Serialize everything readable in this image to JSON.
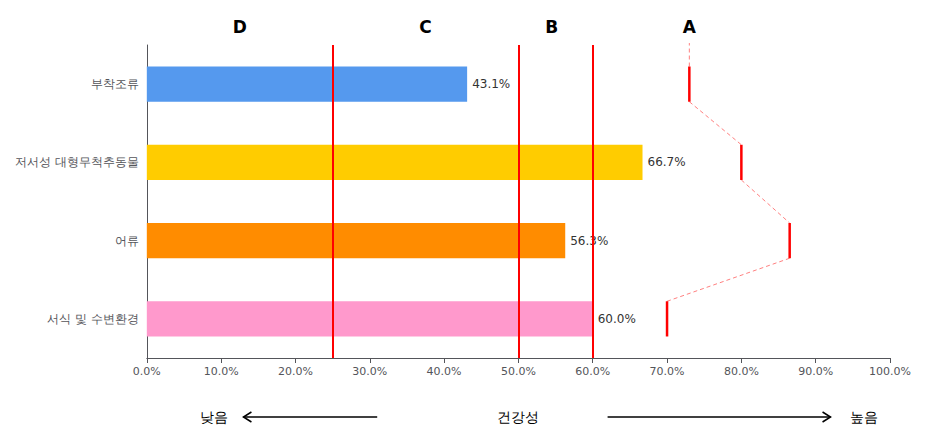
{
  "chart_data": {
    "type": "bar",
    "orientation": "horizontal",
    "categories": [
      "부착조류",
      "저서성 대형무척추동물",
      "어류",
      "서식 및 수변환경"
    ],
    "values": [
      0.431,
      0.667,
      0.563,
      0.6
    ],
    "value_labels": [
      "43.1%",
      "66.7%",
      "56.3%",
      "60.0%"
    ],
    "data_labels": true,
    "colors": [
      "#5599ee",
      "#ffcc00",
      "#ff8c00",
      "#ff99cc"
    ],
    "xlim": [
      0.0,
      1.0
    ],
    "xticks": [
      {
        "value": 0.0,
        "label": "0.0%"
      },
      {
        "value": 0.1,
        "label": "10.0%"
      },
      {
        "value": 0.2,
        "label": "20.0%"
      },
      {
        "value": 0.3,
        "label": "30.0%"
      },
      {
        "value": 0.4,
        "label": "40.0%"
      },
      {
        "value": 0.5,
        "label": "50.0%"
      },
      {
        "value": 0.6,
        "label": "60.0%"
      },
      {
        "value": 0.7,
        "label": "70.0%"
      },
      {
        "value": 0.8,
        "label": "80.0%"
      },
      {
        "value": 0.9,
        "label": "90.0%"
      },
      {
        "value": 1.0,
        "label": "100.0%"
      }
    ],
    "grid": false,
    "xlabel": "건강성",
    "annotations": [
      "낮음",
      "높음"
    ],
    "grade_labels": [
      {
        "text": "D",
        "x": 0.125
      },
      {
        "text": "C",
        "x": 0.375
      },
      {
        "text": "B",
        "x": 0.545
      },
      {
        "text": "A",
        "x": 0.73
      }
    ],
    "grade_boundaries": {
      "values": [
        0.25,
        0.5,
        0.6
      ],
      "color": "#ff0000"
    },
    "a_boundaries": {
      "values": [
        0.73,
        0.8,
        0.865,
        0.7
      ],
      "color": "#ff0000"
    }
  }
}
